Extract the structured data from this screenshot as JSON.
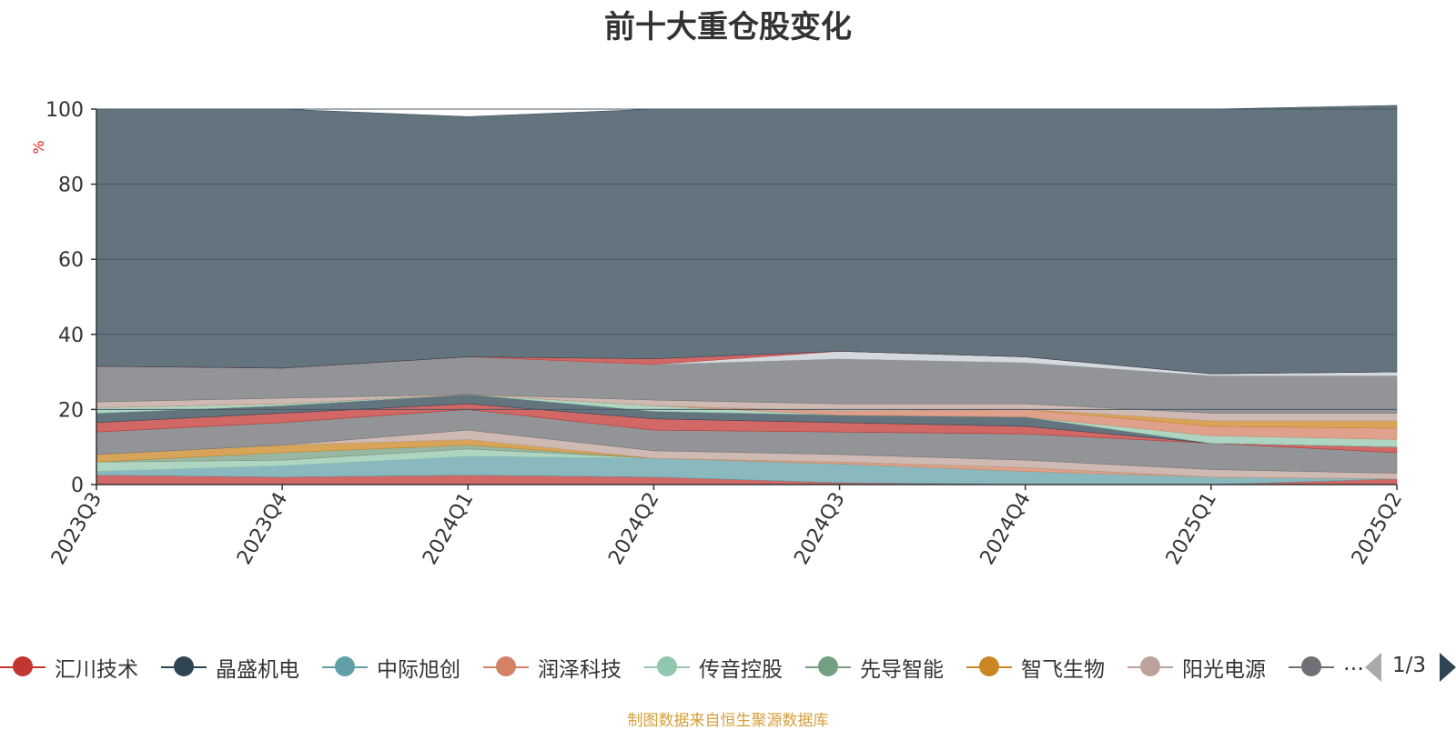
{
  "chart_data": {
    "type": "area",
    "title": "前十大重仓股变化",
    "ylabel": "%",
    "ylim": [
      0,
      100
    ],
    "yticks": [
      0,
      20,
      40,
      60,
      80,
      100
    ],
    "categories": [
      "2023Q3",
      "2023Q4",
      "2024Q1",
      "2024Q2",
      "2024Q3",
      "2024Q4",
      "2025Q1",
      "2025Q2"
    ],
    "grid": true,
    "legend_position": "bottom",
    "legend": [
      {
        "name": "汇川技术",
        "color": "#c23531"
      },
      {
        "name": "晶盛机电",
        "color": "#2f4554"
      },
      {
        "name": "中际旭创",
        "color": "#61a0a8"
      },
      {
        "name": "润泽科技",
        "color": "#d48265"
      },
      {
        "name": "传音控股",
        "color": "#91c7ae"
      },
      {
        "name": "先导智能",
        "color": "#749f83"
      },
      {
        "name": "智飞生物",
        "color": "#ca8622"
      },
      {
        "name": "阳光电源",
        "color": "#bda29a"
      },
      {
        "name": "…",
        "color": "#6e7074"
      }
    ],
    "legend_page": "1/3",
    "stack_values": [
      {
        "color": "#c23531",
        "values": [
          2.5,
          2.0,
          2.5,
          2.0,
          0.5,
          0.0,
          0.0,
          1.5
        ]
      },
      {
        "color": "#61a0a8",
        "values": [
          1.0,
          3.0,
          5.0,
          5.0,
          5.0,
          3.5,
          2.0,
          0.0
        ]
      },
      {
        "color": "#91c7ae",
        "values": [
          2.5,
          1.5,
          2.0,
          0.0,
          0.0,
          0.0,
          0.0,
          0.0
        ]
      },
      {
        "color": "#d48265",
        "values": [
          0.0,
          0.0,
          0.0,
          0.0,
          0.5,
          1.0,
          0.0,
          0.0
        ]
      },
      {
        "color": "#749f83",
        "values": [
          0.0,
          2.0,
          1.0,
          0.0,
          0.0,
          0.0,
          0.0,
          0.0
        ]
      },
      {
        "color": "#ca8622",
        "values": [
          2.0,
          2.0,
          1.5,
          0.0,
          0.0,
          0.0,
          0.0,
          0.0
        ]
      },
      {
        "color": "#bda29a",
        "values": [
          0.0,
          0.0,
          2.5,
          2.0,
          2.0,
          2.0,
          2.0,
          1.5
        ]
      },
      {
        "color": "#6e7074",
        "values": [
          6.0,
          6.0,
          5.5,
          5.5,
          6.0,
          7.0,
          7.0,
          5.5
        ]
      },
      {
        "color": "#c23531",
        "values": [
          2.5,
          2.5,
          1.5,
          3.0,
          2.5,
          2.0,
          0.0,
          1.5
        ]
      },
      {
        "color": "#2f4554",
        "values": [
          2.5,
          2.0,
          2.5,
          2.0,
          2.0,
          2.5,
          0.0,
          0.0
        ]
      },
      {
        "color": "#91c7ae",
        "values": [
          1.5,
          0.5,
          0.0,
          1.5,
          0.0,
          0.0,
          2.0,
          2.0
        ]
      },
      {
        "color": "#d48265",
        "values": [
          0.0,
          0.0,
          0.0,
          0.0,
          1.0,
          2.0,
          2.5,
          3.0
        ]
      },
      {
        "color": "#ca8622",
        "values": [
          0.0,
          0.0,
          0.0,
          0.0,
          0.0,
          0.0,
          1.5,
          2.0
        ]
      },
      {
        "color": "#bda29a",
        "values": [
          1.5,
          1.5,
          0.0,
          1.5,
          2.0,
          1.5,
          2.0,
          2.0
        ]
      },
      {
        "color": "#6e7074",
        "values": [
          9.5,
          8.0,
          10.0,
          9.5,
          12.0,
          11.0,
          10.0,
          10.0
        ]
      },
      {
        "color": "#c4ccd3",
        "values": [
          0.0,
          0.0,
          0.0,
          0.0,
          2.0,
          1.5,
          0.5,
          1.0
        ]
      },
      {
        "color": "#c23531",
        "values": [
          0.0,
          0.0,
          0.0,
          1.5,
          0.0,
          0.0,
          0.0,
          0.0
        ]
      },
      {
        "color": "#2f4554",
        "values": [
          68.5,
          69.0,
          64.0,
          66.5,
          64.5,
          66.0,
          70.5,
          71.0
        ]
      }
    ]
  },
  "footer": {
    "source_note": "制图数据来自恒生聚源数据库"
  }
}
